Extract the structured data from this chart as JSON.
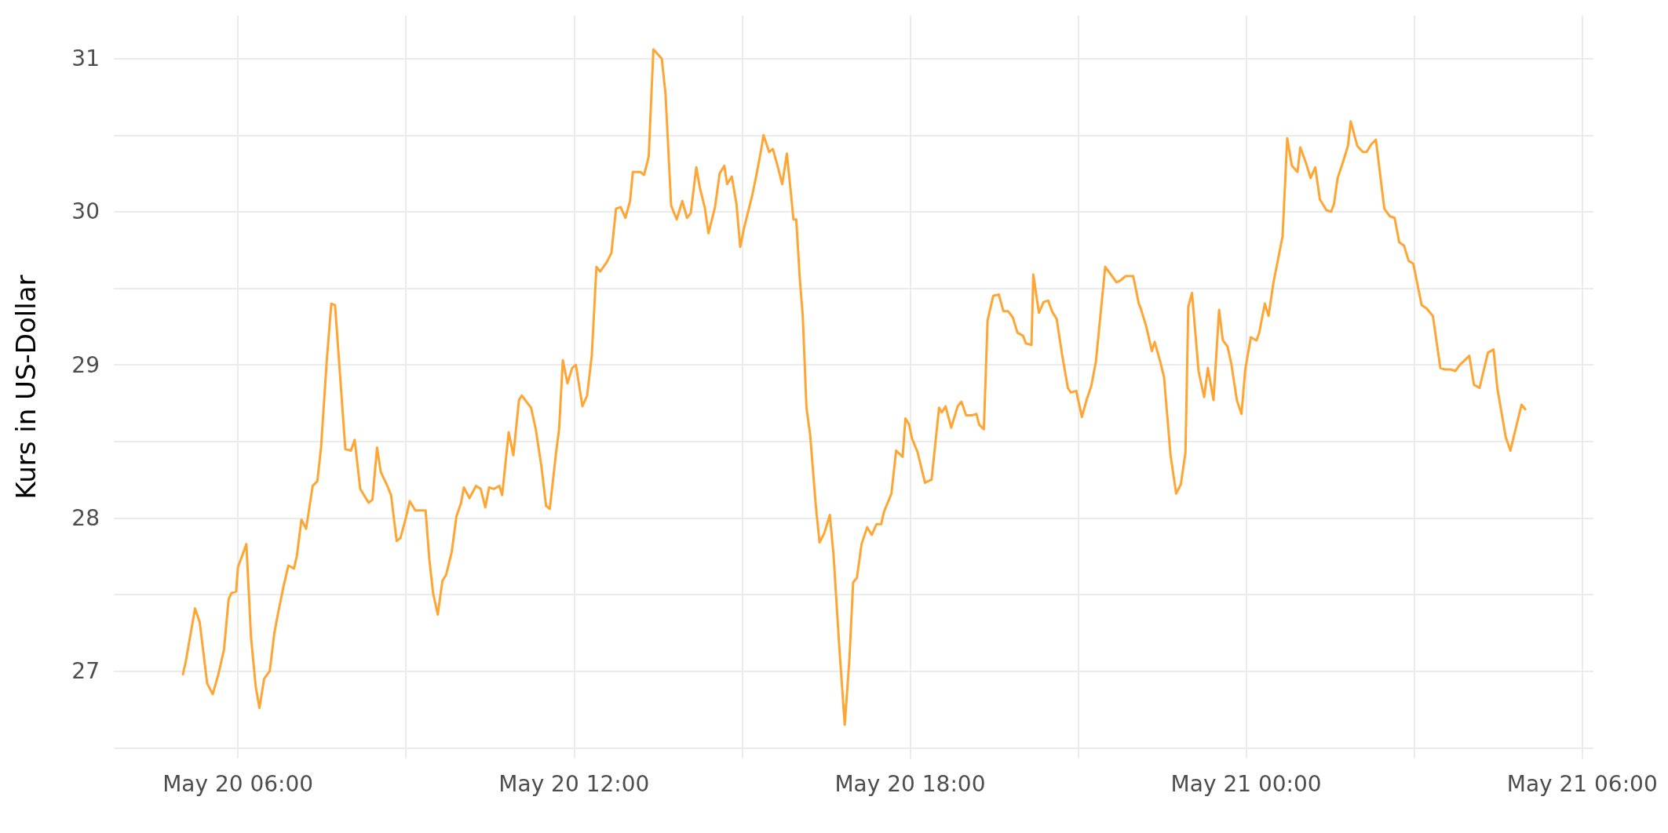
{
  "chart_data": {
    "type": "line",
    "ylabel": "Kurs in US-Dollar",
    "grid": true,
    "xlim": [
      "--05-20T03:47",
      "--05-21T06:12"
    ],
    "ylim": [
      26.43,
      31.28
    ],
    "xticks": [
      {
        "value": "--05-20T06:00",
        "label": "May 20 06:00"
      },
      {
        "value": "--05-20T09:00",
        "label": null
      },
      {
        "value": "--05-20T12:00",
        "label": "May 20 12:00"
      },
      {
        "value": "--05-20T15:00",
        "label": null
      },
      {
        "value": "--05-20T18:00",
        "label": "May 20 18:00"
      },
      {
        "value": "--05-20T21:00",
        "label": null
      },
      {
        "value": "--05-21T00:00",
        "label": "May 21 00:00"
      },
      {
        "value": "--05-21T03:00",
        "label": null
      },
      {
        "value": "--05-21T06:00",
        "label": "May 21 06:00"
      }
    ],
    "yticks": [
      {
        "value": 26.5,
        "label": null
      },
      27,
      {
        "value": 27.5,
        "label": null
      },
      28,
      {
        "value": 28.5,
        "label": null
      },
      29,
      {
        "value": 29.5,
        "label": null
      },
      30,
      {
        "value": 30.5,
        "label": null
      },
      31
    ],
    "series": [
      {
        "color": "#ffa533",
        "x": [
          "--05-20T05:01",
          "--05-20T05:04",
          "--05-20T05:14",
          "--05-20T05:19",
          "--05-20T05:27",
          "--05-20T05:33",
          "--05-20T05:39",
          "--05-20T05:45",
          "--05-20T05:50",
          "--05-20T05:53",
          "--05-20T05:58",
          "--05-20T06:00",
          "--05-20T06:09",
          "--05-20T06:14",
          "--05-20T06:19",
          "--05-20T06:23",
          "--05-20T06:28",
          "--05-20T06:34",
          "--05-20T06:39",
          "--05-20T06:43",
          "--05-20T06:49",
          "--05-20T06:54",
          "--05-20T07:00",
          "--05-20T07:03",
          "--05-20T07:08",
          "--05-20T07:13",
          "--05-20T07:20",
          "--05-20T07:25",
          "--05-20T07:29",
          "--05-20T07:35",
          "--05-20T07:40",
          "--05-20T07:44",
          "--05-20T07:55",
          "--05-20T08:01",
          "--05-20T08:05",
          "--05-20T08:11",
          "--05-20T08:20",
          "--05-20T08:24",
          "--05-20T08:29",
          "--05-20T08:33",
          "--05-20T08:40",
          "--05-20T08:44",
          "--05-20T08:50",
          "--05-20T08:54",
          "--05-20T08:59",
          "--05-20T09:04",
          "--05-20T09:10",
          "--05-20T09:21",
          "--05-20T09:25",
          "--05-20T09:29",
          "--05-20T09:34",
          "--05-20T09:39",
          "--05-20T09:43",
          "--05-20T09:49",
          "--05-20T09:54",
          "--05-20T09:59",
          "--05-20T10:02",
          "--05-20T10:08",
          "--05-20T10:15",
          "--05-20T10:20",
          "--05-20T10:25",
          "--05-20T10:29",
          "--05-20T10:34",
          "--05-20T10:40",
          "--05-20T10:43",
          "--05-20T10:50",
          "--05-20T10:55",
          "--05-20T11:01",
          "--05-20T11:04",
          "--05-20T11:09",
          "--05-20T11:14",
          "--05-20T11:19",
          "--05-20T11:25",
          "--05-20T11:30",
          "--05-20T11:34",
          "--05-20T11:41",
          "--05-20T11:44",
          "--05-20T11:48",
          "--05-20T11:53",
          "--05-20T11:58",
          "--05-20T12:02",
          "--05-20T12:09",
          "--05-20T12:14",
          "--05-20T12:19",
          "--05-20T12:24",
          "--05-20T12:28",
          "--05-20T12:35",
          "--05-20T12:40",
          "--05-20T12:45",
          "--05-20T12:50",
          "--05-20T12:55",
          "--05-20T13:00",
          "--05-20T13:03",
          "--05-20T13:11",
          "--05-20T13:15",
          "--05-20T13:20",
          "--05-20T13:25",
          "--05-20T13:34",
          "--05-20T13:38",
          "--05-20T13:44",
          "--05-20T13:50",
          "--05-20T13:56",
          "--05-20T14:01",
          "--05-20T14:05",
          "--05-20T14:11",
          "--05-20T14:15",
          "--05-20T14:20",
          "--05-20T14:24",
          "--05-20T14:31",
          "--05-20T14:36",
          "--05-20T14:41",
          "--05-20T14:44",
          "--05-20T14:49",
          "--05-20T14:54",
          "--05-20T14:58",
          "--05-20T15:02",
          "--05-20T15:11",
          "--05-20T15:16",
          "--05-20T15:20",
          "--05-20T15:23",
          "--05-20T15:29",
          "--05-20T15:33",
          "--05-20T15:38",
          "--05-20T15:43",
          "--05-20T15:48",
          "--05-20T15:53",
          "--05-20T15:55",
          "--05-20T15:58",
          "--05-20T16:02",
          "--05-20T16:05",
          "--05-20T16:09",
          "--05-20T16:13",
          "--05-20T16:19",
          "--05-20T16:23",
          "--05-20T16:28",
          "--05-20T16:34",
          "--05-20T16:38",
          "--05-20T16:44",
          "--05-20T16:50",
          "--05-20T16:55",
          "--05-20T16:59",
          "--05-20T17:03",
          "--05-20T17:08",
          "--05-20T17:14",
          "--05-20T17:19",
          "--05-20T17:24",
          "--05-20T17:29",
          "--05-20T17:32",
          "--05-20T17:40",
          "--05-20T17:45",
          "--05-20T17:52",
          "--05-20T17:55",
          "--05-20T17:59",
          "--05-20T18:02",
          "--05-20T18:08",
          "--05-20T18:16",
          "--05-20T18:19",
          "--05-20T18:23",
          "--05-20T18:31",
          "--05-20T18:34",
          "--05-20T18:38",
          "--05-20T18:44",
          "--05-20T18:51",
          "--05-20T18:55",
          "--05-20T19:00",
          "--05-20T19:06",
          "--05-20T19:11",
          "--05-20T19:14",
          "--05-20T19:19",
          "--05-20T19:23",
          "--05-20T19:29",
          "--05-20T19:35",
          "--05-20T19:40",
          "--05-20T19:45",
          "--05-20T19:50",
          "--05-20T19:55",
          "--05-20T20:01",
          "--05-20T20:04",
          "--05-20T20:10",
          "--05-20T20:12",
          "--05-20T20:18",
          "--05-20T20:23",
          "--05-20T20:28",
          "--05-20T20:32",
          "--05-20T20:37",
          "--05-20T20:43",
          "--05-20T20:49",
          "--05-20T20:52",
          "--05-20T20:58",
          "--05-20T21:04",
          "--05-20T21:09",
          "--05-20T21:14",
          "--05-20T21:19",
          "--05-20T21:29",
          "--05-20T21:35",
          "--05-20T21:41",
          "--05-20T21:45",
          "--05-20T21:51",
          "--05-20T21:59",
          "--05-20T22:05",
          "--05-20T22:07",
          "--05-20T22:13",
          "--05-20T22:19",
          "--05-20T22:22",
          "--05-20T22:28",
          "--05-20T22:32",
          "--05-20T22:39",
          "--05-20T22:45",
          "--05-20T22:50",
          "--05-20T22:55",
          "--05-20T22:58",
          "--05-20T23:02",
          "--05-20T23:09",
          "--05-20T23:15",
          "--05-20T23:19",
          "--05-20T23:25",
          "--05-20T23:31",
          "--05-20T23:35",
          "--05-20T23:40",
          "--05-20T23:44",
          "--05-20T23:50",
          "--05-20T23:55",
          "--05-20T23:59",
          "--05-21T00:05",
          "--05-21T00:11",
          "--05-21T00:14",
          "--05-21T00:20",
          "--05-21T00:24",
          "--05-21T00:29",
          "--05-21T00:39",
          "--05-21T00:44",
          "--05-21T00:49",
          "--05-21T00:55",
          "--05-21T00:58",
          "--05-21T01:04",
          "--05-21T01:09",
          "--05-21T01:14",
          "--05-21T01:19",
          "--05-21T01:26",
          "--05-21T01:31",
          "--05-21T01:34",
          "--05-21T01:38",
          "--05-21T01:44",
          "--05-21T01:49",
          "--05-21T01:52",
          "--05-21T01:59",
          "--05-21T02:05",
          "--05-21T02:09",
          "--05-21T02:14",
          "--05-21T02:19",
          "--05-21T02:28",
          "--05-21T02:34",
          "--05-21T02:39",
          "--05-21T02:44",
          "--05-21T02:49",
          "--05-21T02:54",
          "--05-21T02:59",
          "--05-21T03:08",
          "--05-21T03:13",
          "--05-21T03:20",
          "--05-21T03:28",
          "--05-21T03:33",
          "--05-21T03:39",
          "--05-21T03:44",
          "--05-21T03:49",
          "--05-21T03:54",
          "--05-21T03:59",
          "--05-21T04:04",
          "--05-21T04:10",
          "--05-21T04:19",
          "--05-21T04:25",
          "--05-21T04:29",
          "--05-21T04:38",
          "--05-21T04:43",
          "--05-21T04:55",
          "--05-21T04:59"
        ],
        "values": [
          26.98,
          27.06,
          27.41,
          27.32,
          26.92,
          26.85,
          26.98,
          27.14,
          27.47,
          27.51,
          27.52,
          27.68,
          27.83,
          27.22,
          26.9,
          26.76,
          26.95,
          27.0,
          27.25,
          27.38,
          27.56,
          27.69,
          27.67,
          27.75,
          27.99,
          27.93,
          28.21,
          28.24,
          28.46,
          29.02,
          29.4,
          29.39,
          28.45,
          28.44,
          28.51,
          28.19,
          28.1,
          28.12,
          28.46,
          28.3,
          28.21,
          28.15,
          27.85,
          27.87,
          27.98,
          28.11,
          28.05,
          28.05,
          27.73,
          27.51,
          27.37,
          27.59,
          27.63,
          27.78,
          28.01,
          28.1,
          28.2,
          28.13,
          28.21,
          28.19,
          28.07,
          28.2,
          28.19,
          28.21,
          28.15,
          28.56,
          28.41,
          28.77,
          28.8,
          28.76,
          28.72,
          28.58,
          28.34,
          28.08,
          28.06,
          28.44,
          28.58,
          29.03,
          28.88,
          28.98,
          29.0,
          28.73,
          28.8,
          29.06,
          29.64,
          29.61,
          29.67,
          29.73,
          30.02,
          30.03,
          29.96,
          30.07,
          30.26,
          30.26,
          30.24,
          30.36,
          31.06,
          31.0,
          30.77,
          30.04,
          29.95,
          30.07,
          29.96,
          29.99,
          30.29,
          30.15,
          30.03,
          29.86,
          30.03,
          30.25,
          30.3,
          30.18,
          30.23,
          30.05,
          29.77,
          29.89,
          30.11,
          30.26,
          30.39,
          30.5,
          30.39,
          30.41,
          30.3,
          30.18,
          30.38,
          30.08,
          29.95,
          29.95,
          29.55,
          29.32,
          28.72,
          28.54,
          28.08,
          27.84,
          27.9,
          28.02,
          27.76,
          27.17,
          26.65,
          27.08,
          27.58,
          27.61,
          27.83,
          27.94,
          27.89,
          27.96,
          27.96,
          28.04,
          28.16,
          28.44,
          28.4,
          28.65,
          28.61,
          28.52,
          28.43,
          28.23,
          28.24,
          28.25,
          28.72,
          28.69,
          28.73,
          28.59,
          28.73,
          28.76,
          28.67,
          28.67,
          28.68,
          28.61,
          28.58,
          29.29,
          29.45,
          29.46,
          29.35,
          29.35,
          29.31,
          29.21,
          29.19,
          29.14,
          29.13,
          29.59,
          29.34,
          29.41,
          29.42,
          29.35,
          29.3,
          29.06,
          28.85,
          28.82,
          28.83,
          28.66,
          28.77,
          28.86,
          29.02,
          29.64,
          29.59,
          29.54,
          29.55,
          29.58,
          29.58,
          29.4,
          29.37,
          29.25,
          29.09,
          29.15,
          29.02,
          28.92,
          28.41,
          28.16,
          28.22,
          28.43,
          29.38,
          29.47,
          28.96,
          28.79,
          28.98,
          28.77,
          29.36,
          29.16,
          29.12,
          29.01,
          28.77,
          28.68,
          28.97,
          29.18,
          29.16,
          29.21,
          29.4,
          29.32,
          29.53,
          29.84,
          30.48,
          30.3,
          30.26,
          30.42,
          30.32,
          30.22,
          30.29,
          30.08,
          30.01,
          30.0,
          30.05,
          30.22,
          30.33,
          30.43,
          30.59,
          30.43,
          30.39,
          30.39,
          30.44,
          30.47,
          30.02,
          29.97,
          29.96,
          29.8,
          29.78,
          29.68,
          29.66,
          29.39,
          29.37,
          29.32,
          28.98,
          28.97,
          28.97,
          28.96,
          29.0,
          29.03,
          29.06,
          28.87,
          28.85,
          29.08,
          29.1,
          28.85,
          28.53,
          28.44,
          28.74,
          28.71
        ]
      }
    ]
  }
}
